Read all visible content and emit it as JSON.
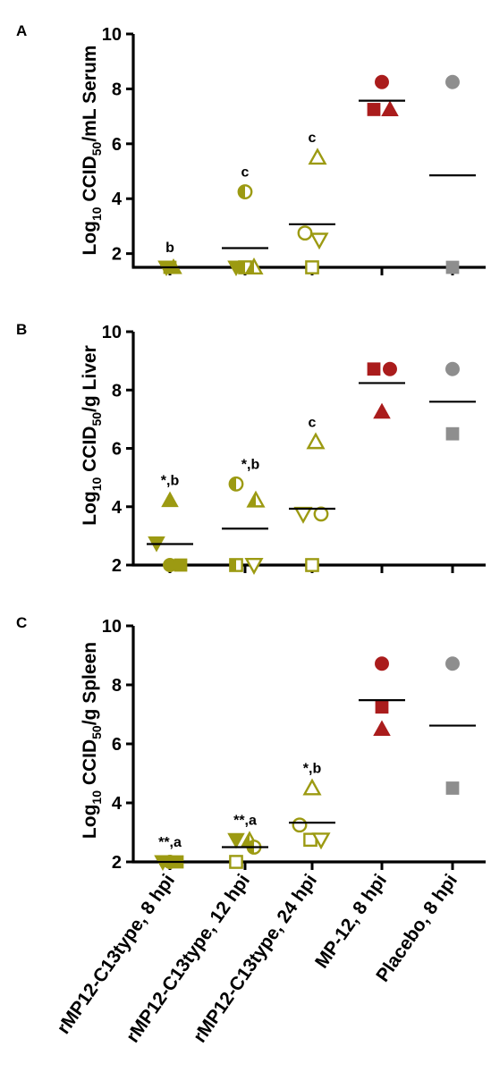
{
  "categories": [
    "rMP12-C13type, 8 hpi",
    "rMP12-C13type, 12 hpi",
    "rMP12-C13type, 24 hpi",
    "MP-12, 8 hpi",
    "Placebo, 8 hpi"
  ],
  "colors": {
    "olive": "#9c9a12",
    "red": "#aa1c1c",
    "gray": "#8e8e8e",
    "axis": "#000000"
  },
  "chart_data": [
    {
      "type": "scatter",
      "panel": "A",
      "ylabel_pre": "Log",
      "ylabel_sub1": "10",
      "ylabel_mid": " CCID",
      "ylabel_sub2": "50",
      "ylabel_post": "/mL Serum",
      "ylim": [
        1.5,
        10
      ],
      "yticks": [
        2,
        4,
        6,
        8,
        10
      ],
      "means": [
        1.5,
        2.2,
        3.07,
        7.57,
        4.85
      ],
      "annotations": [
        "b",
        "c",
        "c",
        "",
        ""
      ],
      "points": [
        {
          "cat": 0,
          "dx": -4,
          "y": 1.5,
          "shape": "tri-down",
          "fill": "solid",
          "color": "olive"
        },
        {
          "cat": 0,
          "dx": 0,
          "y": 1.5,
          "shape": "square",
          "fill": "solid",
          "color": "olive"
        },
        {
          "cat": 0,
          "dx": 4,
          "y": 1.5,
          "shape": "tri-up",
          "fill": "solid",
          "color": "olive"
        },
        {
          "cat": 1,
          "dx": 0,
          "y": 4.25,
          "shape": "circle",
          "fill": "half",
          "color": "olive"
        },
        {
          "cat": 1,
          "dx": -10,
          "y": 1.5,
          "shape": "tri-down",
          "fill": "solid",
          "color": "olive"
        },
        {
          "cat": 1,
          "dx": 0,
          "y": 1.5,
          "shape": "square",
          "fill": "half",
          "color": "olive"
        },
        {
          "cat": 1,
          "dx": 10,
          "y": 1.5,
          "shape": "tri-up",
          "fill": "half",
          "color": "olive"
        },
        {
          "cat": 2,
          "dx": 6,
          "y": 5.5,
          "shape": "tri-up",
          "fill": "open",
          "color": "olive"
        },
        {
          "cat": 2,
          "dx": -8,
          "y": 2.75,
          "shape": "circle",
          "fill": "open",
          "color": "olive"
        },
        {
          "cat": 2,
          "dx": 8,
          "y": 2.5,
          "shape": "tri-down",
          "fill": "open",
          "color": "olive"
        },
        {
          "cat": 2,
          "dx": 0,
          "y": 1.5,
          "shape": "square",
          "fill": "open",
          "color": "olive"
        },
        {
          "cat": 3,
          "dx": 0,
          "y": 8.25,
          "shape": "circle",
          "fill": "solid",
          "color": "red"
        },
        {
          "cat": 3,
          "dx": -9,
          "y": 7.25,
          "shape": "square",
          "fill": "solid",
          "color": "red"
        },
        {
          "cat": 3,
          "dx": 9,
          "y": 7.25,
          "shape": "tri-up",
          "fill": "solid",
          "color": "red"
        },
        {
          "cat": 4,
          "dx": 0,
          "y": 8.25,
          "shape": "circle",
          "fill": "solid",
          "color": "gray"
        },
        {
          "cat": 4,
          "dx": 0,
          "y": 1.5,
          "shape": "square",
          "fill": "solid",
          "color": "gray"
        }
      ]
    },
    {
      "type": "scatter",
      "panel": "B",
      "ylabel_pre": "Log",
      "ylabel_sub1": "10",
      "ylabel_mid": " CCID",
      "ylabel_sub2": "50",
      "ylabel_post": "/g Liver",
      "ylim": [
        2,
        10
      ],
      "yticks": [
        2,
        4,
        6,
        8,
        10
      ],
      "means": [
        2.72,
        3.25,
        3.93,
        8.24,
        7.6
      ],
      "annotations": [
        "*,b",
        "*,b",
        "c",
        "",
        ""
      ],
      "points": [
        {
          "cat": 0,
          "dx": 0,
          "y": 4.22,
          "shape": "tri-up",
          "fill": "solid",
          "color": "olive"
        },
        {
          "cat": 0,
          "dx": -15,
          "y": 2.75,
          "shape": "tri-down",
          "fill": "solid",
          "color": "olive"
        },
        {
          "cat": 0,
          "dx": 0,
          "y": 2.0,
          "shape": "circle",
          "fill": "solid",
          "color": "olive"
        },
        {
          "cat": 0,
          "dx": 12,
          "y": 2.0,
          "shape": "square",
          "fill": "solid",
          "color": "olive"
        },
        {
          "cat": 1,
          "dx": -10,
          "y": 4.78,
          "shape": "circle",
          "fill": "half",
          "color": "olive"
        },
        {
          "cat": 1,
          "dx": 12,
          "y": 4.22,
          "shape": "tri-up",
          "fill": "half",
          "color": "olive"
        },
        {
          "cat": 1,
          "dx": -10,
          "y": 2.0,
          "shape": "square",
          "fill": "half",
          "color": "olive"
        },
        {
          "cat": 1,
          "dx": 10,
          "y": 2.0,
          "shape": "tri-down",
          "fill": "open",
          "color": "olive"
        },
        {
          "cat": 2,
          "dx": 4,
          "y": 6.22,
          "shape": "tri-up",
          "fill": "open",
          "color": "olive"
        },
        {
          "cat": 2,
          "dx": -10,
          "y": 3.75,
          "shape": "tri-down",
          "fill": "open",
          "color": "olive"
        },
        {
          "cat": 2,
          "dx": 10,
          "y": 3.75,
          "shape": "circle",
          "fill": "open",
          "color": "olive"
        },
        {
          "cat": 2,
          "dx": 0,
          "y": 2.0,
          "shape": "square",
          "fill": "open",
          "color": "olive"
        },
        {
          "cat": 3,
          "dx": -9,
          "y": 8.72,
          "shape": "square",
          "fill": "solid",
          "color": "red"
        },
        {
          "cat": 3,
          "dx": 9,
          "y": 8.72,
          "shape": "circle",
          "fill": "solid",
          "color": "red"
        },
        {
          "cat": 3,
          "dx": 0,
          "y": 7.25,
          "shape": "tri-up",
          "fill": "solid",
          "color": "red"
        },
        {
          "cat": 4,
          "dx": 0,
          "y": 8.72,
          "shape": "circle",
          "fill": "solid",
          "color": "gray"
        },
        {
          "cat": 4,
          "dx": 0,
          "y": 6.5,
          "shape": "square",
          "fill": "solid",
          "color": "gray"
        }
      ]
    },
    {
      "type": "scatter",
      "panel": "C",
      "ylabel_pre": "Log",
      "ylabel_sub1": "10",
      "ylabel_mid": " CCID",
      "ylabel_sub2": "50",
      "ylabel_post": "/g Spleen",
      "ylim": [
        2,
        10
      ],
      "yticks": [
        2,
        4,
        6,
        8,
        10
      ],
      "means": [
        2.0,
        2.5,
        3.33,
        7.48,
        6.62
      ],
      "annotations": [
        "**,a",
        "**,a",
        "*,b",
        "",
        ""
      ],
      "points": [
        {
          "cat": 0,
          "dx": -8,
          "y": 2.0,
          "shape": "tri-down",
          "fill": "solid",
          "color": "olive"
        },
        {
          "cat": 0,
          "dx": 0,
          "y": 2.0,
          "shape": "circle",
          "fill": "solid",
          "color": "olive"
        },
        {
          "cat": 0,
          "dx": 8,
          "y": 2.0,
          "shape": "square",
          "fill": "solid",
          "color": "olive"
        },
        {
          "cat": 1,
          "dx": -10,
          "y": 2.75,
          "shape": "tri-down",
          "fill": "solid",
          "color": "olive"
        },
        {
          "cat": 1,
          "dx": 5,
          "y": 2.72,
          "shape": "tri-up",
          "fill": "half",
          "color": "olive"
        },
        {
          "cat": 1,
          "dx": 10,
          "y": 2.5,
          "shape": "circle",
          "fill": "half",
          "color": "olive"
        },
        {
          "cat": 1,
          "dx": -10,
          "y": 2.0,
          "shape": "square",
          "fill": "open",
          "color": "olive"
        },
        {
          "cat": 2,
          "dx": 0,
          "y": 4.5,
          "shape": "tri-up",
          "fill": "open",
          "color": "olive"
        },
        {
          "cat": 2,
          "dx": -14,
          "y": 3.25,
          "shape": "circle",
          "fill": "open",
          "color": "olive"
        },
        {
          "cat": 2,
          "dx": -2,
          "y": 2.75,
          "shape": "square",
          "fill": "open",
          "color": "olive"
        },
        {
          "cat": 2,
          "dx": 10,
          "y": 2.75,
          "shape": "tri-down",
          "fill": "open",
          "color": "olive"
        },
        {
          "cat": 3,
          "dx": 0,
          "y": 8.72,
          "shape": "circle",
          "fill": "solid",
          "color": "red"
        },
        {
          "cat": 3,
          "dx": 0,
          "y": 7.25,
          "shape": "square",
          "fill": "solid",
          "color": "red"
        },
        {
          "cat": 3,
          "dx": 0,
          "y": 6.5,
          "shape": "tri-up",
          "fill": "solid",
          "color": "red"
        },
        {
          "cat": 4,
          "dx": 0,
          "y": 8.72,
          "shape": "circle",
          "fill": "solid",
          "color": "gray"
        },
        {
          "cat": 4,
          "dx": 0,
          "y": 4.5,
          "shape": "square",
          "fill": "solid",
          "color": "gray"
        }
      ]
    }
  ]
}
